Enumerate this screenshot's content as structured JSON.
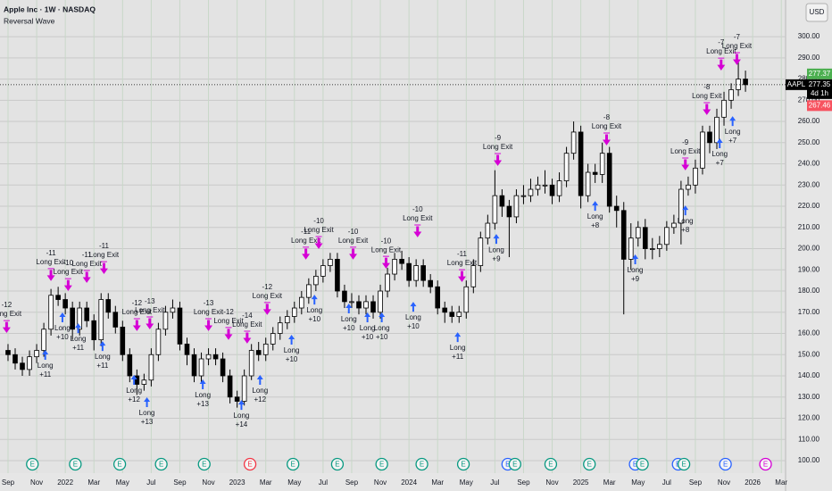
{
  "chart_data": {
    "type": "candlestick",
    "title": "Apple Inc · 1W · NASDAQ",
    "subtitle": "Reversal Wave",
    "currency": "USD",
    "up_color": "#ffffff",
    "down_color": "#000000",
    "grid": true,
    "xlim": [
      -0.56,
      54.3
    ],
    "ylim": [
      94.1,
      317.3
    ],
    "xticks": [
      {
        "value": 0,
        "label": "Sep"
      },
      {
        "value": 2,
        "label": "Nov"
      },
      {
        "value": 4,
        "label": "2022"
      },
      {
        "value": 6,
        "label": "Mar"
      },
      {
        "value": 8,
        "label": "May"
      },
      {
        "value": 10,
        "label": "Jul"
      },
      {
        "value": 12,
        "label": "Sep"
      },
      {
        "value": 14,
        "label": "Nov"
      },
      {
        "value": 16,
        "label": "2023"
      },
      {
        "value": 18,
        "label": "Mar"
      },
      {
        "value": 20,
        "label": "May"
      },
      {
        "value": 22,
        "label": "Jul"
      },
      {
        "value": 24,
        "label": "Sep"
      },
      {
        "value": 26,
        "label": "Nov"
      },
      {
        "value": 28,
        "label": "2024"
      },
      {
        "value": 30,
        "label": "Mar"
      },
      {
        "value": 32,
        "label": "May"
      },
      {
        "value": 34,
        "label": "Jul"
      },
      {
        "value": 36,
        "label": "Sep"
      },
      {
        "value": 38,
        "label": "Nov"
      },
      {
        "value": 40,
        "label": "2025"
      },
      {
        "value": 42,
        "label": "Mar"
      },
      {
        "value": 44,
        "label": "May"
      },
      {
        "value": 46,
        "label": "Jul"
      },
      {
        "value": 48,
        "label": "Sep"
      },
      {
        "value": 50,
        "label": "Nov"
      },
      {
        "value": 52,
        "label": "2026"
      },
      {
        "value": 54,
        "label": "Mar"
      }
    ],
    "yticks": [
      {
        "value": 100,
        "label": "100.00"
      },
      {
        "value": 110,
        "label": "110.00"
      },
      {
        "value": 120,
        "label": "120.00"
      },
      {
        "value": 130,
        "label": "130.00"
      },
      {
        "value": 140,
        "label": "140.00"
      },
      {
        "value": 150,
        "label": "150.00"
      },
      {
        "value": 160,
        "label": "160.00"
      },
      {
        "value": 170,
        "label": "170.00"
      },
      {
        "value": 180,
        "label": "180.00"
      },
      {
        "value": 190,
        "label": "190.00"
      },
      {
        "value": 200,
        "label": "200.00"
      },
      {
        "value": 210,
        "label": "210.00"
      },
      {
        "value": 220,
        "label": "220.00"
      },
      {
        "value": 230,
        "label": "230.00"
      },
      {
        "value": 240,
        "label": "240.00"
      },
      {
        "value": 250,
        "label": "250.00"
      },
      {
        "value": 260,
        "label": "260.00"
      },
      {
        "value": 270,
        "label": "270.00"
      },
      {
        "value": 280,
        "label": "280.00"
      },
      {
        "value": 290,
        "label": "290.00"
      },
      {
        "value": 300,
        "label": "300.00"
      }
    ],
    "x": [
      0,
      0.5,
      1,
      1.5,
      2,
      2.5,
      3,
      3.5,
      4,
      4.5,
      5,
      5.5,
      6,
      6.5,
      7,
      7.5,
      8,
      8.5,
      9,
      9.5,
      10,
      10.5,
      11,
      11.5,
      12,
      12.5,
      13,
      13.5,
      14,
      14.5,
      15,
      15.5,
      16,
      16.5,
      17,
      17.5,
      18,
      18.5,
      19,
      19.5,
      20,
      20.5,
      21,
      21.5,
      22,
      22.5,
      23,
      23.5,
      24,
      24.5,
      25,
      25.5,
      26,
      26.5,
      27,
      27.5,
      28,
      28.5,
      29,
      29.5,
      30,
      30.5,
      31,
      31.5,
      32,
      32.5,
      33,
      33.5,
      34,
      34.5,
      35,
      35.5,
      36,
      36.5,
      37,
      37.5,
      38,
      38.5,
      39,
      39.5,
      40,
      40.5,
      41,
      41.5,
      42,
      42.5,
      43,
      43.5,
      44,
      44.5,
      45,
      45.5,
      46,
      46.5,
      47,
      47.5,
      48,
      48.5,
      49,
      49.5,
      50,
      50.5,
      51,
      51.5
    ],
    "open": [
      152,
      150,
      146,
      143,
      149,
      152,
      162,
      178,
      176,
      172,
      162,
      172,
      166,
      157,
      176,
      170,
      163,
      150,
      140,
      136,
      138,
      150,
      162,
      170,
      172,
      155,
      150,
      140,
      148,
      150,
      148,
      140,
      130,
      128,
      140,
      152,
      150,
      155,
      160,
      165,
      168,
      172,
      177,
      183,
      187,
      192,
      195,
      180,
      175,
      175,
      172,
      175,
      170,
      180,
      188,
      195,
      193,
      185,
      192,
      185,
      182,
      172,
      170,
      168,
      170,
      182,
      192,
      205,
      212,
      225,
      220,
      215,
      225,
      225,
      228,
      230,
      230,
      225,
      232,
      245,
      255,
      225,
      236,
      235,
      245,
      220,
      218,
      195,
      205,
      210,
      200,
      200,
      202,
      210,
      212,
      228,
      230,
      238,
      255,
      250,
      262,
      270,
      275,
      280
    ],
    "high": [
      155,
      153,
      149,
      152,
      155,
      165,
      181,
      182,
      179,
      175,
      175,
      175,
      169,
      179,
      179,
      173,
      166,
      153,
      143,
      141,
      153,
      165,
      173,
      176,
      175,
      158,
      153,
      151,
      153,
      153,
      151,
      143,
      133,
      143,
      155,
      156,
      158,
      163,
      168,
      171,
      175,
      180,
      186,
      190,
      195,
      198,
      198,
      183,
      179,
      178,
      178,
      178,
      183,
      191,
      198,
      199,
      196,
      195,
      195,
      188,
      185,
      175,
      173,
      173,
      185,
      195,
      208,
      216,
      237,
      228,
      223,
      228,
      230,
      233,
      234,
      237,
      233,
      236,
      248,
      260,
      258,
      240,
      240,
      250,
      248,
      225,
      222,
      212,
      213,
      214,
      205,
      206,
      213,
      216,
      232,
      234,
      242,
      258,
      258,
      266,
      274,
      278,
      288,
      284
    ],
    "low": [
      147,
      143,
      140,
      140,
      146,
      149,
      159,
      173,
      169,
      157,
      159,
      163,
      152,
      154,
      167,
      160,
      147,
      137,
      131,
      133,
      135,
      147,
      159,
      167,
      152,
      145,
      137,
      137,
      145,
      145,
      137,
      127,
      125,
      126,
      138,
      147,
      147,
      152,
      157,
      162,
      165,
      169,
      174,
      180,
      184,
      189,
      177,
      172,
      172,
      169,
      169,
      167,
      167,
      177,
      185,
      190,
      182,
      182,
      182,
      179,
      169,
      165,
      165,
      165,
      167,
      179,
      189,
      202,
      209,
      215,
      196,
      212,
      221,
      222,
      225,
      226,
      221,
      222,
      229,
      242,
      219,
      222,
      231,
      231,
      217,
      210,
      169,
      190,
      201,
      195,
      195,
      196,
      199,
      207,
      202,
      225,
      226,
      235,
      245,
      247,
      258,
      266,
      272,
      274
    ],
    "close": [
      150,
      146,
      143,
      149,
      152,
      162,
      178,
      176,
      172,
      162,
      172,
      166,
      157,
      176,
      170,
      163,
      150,
      140,
      136,
      138,
      150,
      162,
      170,
      172,
      155,
      150,
      140,
      148,
      150,
      148,
      140,
      130,
      128,
      140,
      152,
      150,
      155,
      160,
      165,
      168,
      172,
      177,
      183,
      187,
      192,
      195,
      180,
      175,
      175,
      172,
      175,
      170,
      180,
      188,
      195,
      193,
      185,
      192,
      185,
      182,
      172,
      170,
      168,
      170,
      182,
      192,
      205,
      212,
      225,
      220,
      215,
      225,
      225,
      228,
      230,
      230,
      225,
      232,
      245,
      255,
      225,
      236,
      235,
      245,
      220,
      218,
      195,
      205,
      210,
      200,
      200,
      202,
      210,
      212,
      228,
      230,
      238,
      255,
      250,
      262,
      270,
      275,
      280,
      277.35
    ],
    "exit_color": "#d500d5",
    "long_color": "#2962ff",
    "long_exits": [
      {
        "x": -0.1,
        "price": 160.6,
        "label": "Long Exit",
        "count": "-12"
      },
      {
        "x": 3.0,
        "price": 185.1,
        "label": "Long Exit",
        "count": "-11"
      },
      {
        "x": 4.2,
        "price": 180.4,
        "label": "Long Exit",
        "count": "-10"
      },
      {
        "x": 5.5,
        "price": 184.2,
        "label": "Long Exit",
        "count": "-11"
      },
      {
        "x": 6.7,
        "price": 188.4,
        "label": "Long Exit",
        "count": "-11"
      },
      {
        "x": 9.0,
        "price": 161.5,
        "label": "Long Exit",
        "count": "-12"
      },
      {
        "x": 9.9,
        "price": 162.3,
        "label": "Long Exit",
        "count": "-13"
      },
      {
        "x": 14.0,
        "price": 161.5,
        "label": "Long Exit",
        "count": "-13"
      },
      {
        "x": 15.4,
        "price": 157.3,
        "label": "Long Exit",
        "count": "-12"
      },
      {
        "x": 16.7,
        "price": 155.6,
        "label": "Long Exit",
        "count": "-14"
      },
      {
        "x": 18.1,
        "price": 169.1,
        "label": "Long Exit",
        "count": "-12"
      },
      {
        "x": 20.8,
        "price": 195.2,
        "label": "Long Exit",
        "count": "-11"
      },
      {
        "x": 21.7,
        "price": 200.2,
        "label": "Long Exit",
        "count": "-10"
      },
      {
        "x": 24.1,
        "price": 195.2,
        "label": "Long Exit",
        "count": "-10"
      },
      {
        "x": 26.4,
        "price": 190.9,
        "label": "Long Exit",
        "count": "-10"
      },
      {
        "x": 28.6,
        "price": 205.7,
        "label": "Long Exit",
        "count": "-10"
      },
      {
        "x": 31.7,
        "price": 184.6,
        "label": "Long Exit",
        "count": "-11"
      },
      {
        "x": 34.2,
        "price": 239.4,
        "label": "Long Exit",
        "count": "-9"
      },
      {
        "x": 41.8,
        "price": 249.1,
        "label": "Long Exit",
        "count": "-8"
      },
      {
        "x": 47.3,
        "price": 237.3,
        "label": "Long Exit",
        "count": "-9"
      },
      {
        "x": 48.8,
        "price": 263.4,
        "label": "Long Exit",
        "count": "-8"
      },
      {
        "x": 49.8,
        "price": 284.4,
        "label": "Long Exit",
        "count": "-7"
      },
      {
        "x": 50.9,
        "price": 287.0,
        "label": "Long Exit",
        "count": "-7"
      }
    ],
    "longs": [
      {
        "x": 2.6,
        "price": 152.2,
        "label": "Long",
        "count": "+11"
      },
      {
        "x": 3.8,
        "price": 169.9,
        "label": "Long",
        "count": "+10"
      },
      {
        "x": 4.9,
        "price": 164.8,
        "label": "Long",
        "count": "+11"
      },
      {
        "x": 6.6,
        "price": 156.4,
        "label": "Long",
        "count": "+11"
      },
      {
        "x": 8.8,
        "price": 140.4,
        "label": "Long",
        "count": "+12"
      },
      {
        "x": 9.7,
        "price": 129.9,
        "label": "Long",
        "count": "+13"
      },
      {
        "x": 13.6,
        "price": 138.3,
        "label": "Long",
        "count": "+13"
      },
      {
        "x": 16.3,
        "price": 128.6,
        "label": "Long",
        "count": "+14"
      },
      {
        "x": 17.6,
        "price": 140.4,
        "label": "Long",
        "count": "+12"
      },
      {
        "x": 19.8,
        "price": 159.4,
        "label": "Long",
        "count": "+10"
      },
      {
        "x": 21.4,
        "price": 178.3,
        "label": "Long",
        "count": "+10"
      },
      {
        "x": 23.8,
        "price": 174.1,
        "label": "Long",
        "count": "+10"
      },
      {
        "x": 25.1,
        "price": 169.9,
        "label": "Long",
        "count": "+10"
      },
      {
        "x": 26.1,
        "price": 169.9,
        "label": "Long",
        "count": "+10"
      },
      {
        "x": 28.3,
        "price": 174.9,
        "label": "Long",
        "count": "+10"
      },
      {
        "x": 31.4,
        "price": 160.6,
        "label": "Long",
        "count": "+11"
      },
      {
        "x": 34.1,
        "price": 206.9,
        "label": "Long",
        "count": "+9"
      },
      {
        "x": 41.0,
        "price": 222.5,
        "label": "Long",
        "count": "+8"
      },
      {
        "x": 43.8,
        "price": 197.3,
        "label": "Long",
        "count": "+9"
      },
      {
        "x": 47.3,
        "price": 220.4,
        "label": "Long",
        "count": "+8"
      },
      {
        "x": 49.7,
        "price": 252.0,
        "label": "Long",
        "count": "+7"
      },
      {
        "x": 50.6,
        "price": 262.5,
        "label": "Long",
        "count": "+7"
      }
    ],
    "earnings": {
      "label": "E",
      "x": [
        1.7,
        4.7,
        7.8,
        10.7,
        13.7,
        16.9,
        19.9,
        23.0,
        26.1,
        28.9,
        31.8,
        34.9,
        35.4,
        37.9,
        40.6,
        43.8,
        44.3,
        46.8,
        47.2,
        50.1,
        52.9
      ],
      "colors": [
        "#089981",
        "#089981",
        "#089981",
        "#089981",
        "#089981",
        "#f23645",
        "#089981",
        "#089981",
        "#089981",
        "#089981",
        "#089981",
        "#2962ff",
        "#089981",
        "#089981",
        "#089981",
        "#2962ff",
        "#089981",
        "#2962ff",
        "#089981",
        "#2962ff",
        "#d500d5"
      ]
    },
    "price_labels": [
      {
        "value": 277.37,
        "label": "277.37",
        "color": "#4caf50"
      },
      {
        "value": 277.35,
        "label": "277.35",
        "symbol": "AAPL",
        "countdown": "4d 1h",
        "color": "#000000"
      },
      {
        "value": 267.46,
        "label": "267.46",
        "color": "#f7525f"
      }
    ]
  }
}
